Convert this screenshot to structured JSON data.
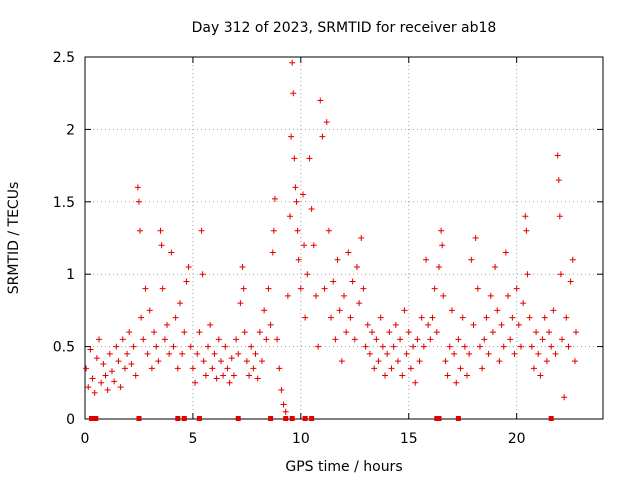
{
  "chart_data": {
    "type": "scatter",
    "title": "Day 312 of 2023, SRMTID for receiver ab18",
    "xlabel": "GPS time / hours",
    "ylabel": "SRMTID / TECUs",
    "xlim": [
      0,
      24
    ],
    "ylim": [
      0,
      2.5
    ],
    "xticks": [
      0,
      5,
      10,
      15,
      20
    ],
    "xtick_labels": [
      "0",
      "5",
      "10",
      "15",
      "20"
    ],
    "yticks": [
      0,
      0.5,
      1,
      1.5,
      2,
      2.5
    ],
    "ytick_labels": [
      "0",
      "0.5",
      "1",
      "1.5",
      "2",
      "2.5"
    ],
    "grid": true,
    "marker": "+",
    "color": "#e00000",
    "series": [
      {
        "name": "SRMTID",
        "points": [
          [
            0.05,
            0.35
          ],
          [
            0.15,
            0.22
          ],
          [
            0.25,
            0.48
          ],
          [
            0.35,
            0.28
          ],
          [
            0.45,
            0.18
          ],
          [
            0.55,
            0.42
          ],
          [
            0.65,
            0.55
          ],
          [
            0.75,
            0.25
          ],
          [
            0.85,
            0.38
          ],
          [
            0.95,
            0.3
          ],
          [
            1.05,
            0.2
          ],
          [
            1.15,
            0.45
          ],
          [
            1.25,
            0.33
          ],
          [
            1.35,
            0.26
          ],
          [
            1.45,
            0.5
          ],
          [
            1.55,
            0.4
          ],
          [
            1.65,
            0.22
          ],
          [
            1.75,
            0.55
          ],
          [
            1.85,
            0.35
          ],
          [
            1.95,
            0.45
          ],
          [
            2.05,
            0.6
          ],
          [
            2.15,
            0.38
          ],
          [
            2.25,
            0.5
          ],
          [
            2.35,
            0.3
          ],
          [
            2.45,
            1.6
          ],
          [
            2.5,
            1.5
          ],
          [
            2.55,
            1.3
          ],
          [
            2.6,
            0.7
          ],
          [
            2.7,
            0.55
          ],
          [
            2.8,
            0.9
          ],
          [
            2.9,
            0.45
          ],
          [
            3.0,
            0.75
          ],
          [
            3.1,
            0.35
          ],
          [
            3.2,
            0.6
          ],
          [
            3.3,
            0.5
          ],
          [
            3.4,
            0.4
          ],
          [
            3.5,
            1.3
          ],
          [
            3.55,
            1.2
          ],
          [
            3.6,
            0.9
          ],
          [
            3.7,
            0.55
          ],
          [
            3.8,
            0.65
          ],
          [
            3.9,
            0.45
          ],
          [
            4.0,
            1.15
          ],
          [
            4.1,
            0.5
          ],
          [
            4.2,
            0.7
          ],
          [
            4.3,
            0.35
          ],
          [
            4.4,
            0.8
          ],
          [
            4.5,
            0.45
          ],
          [
            4.6,
            0.6
          ],
          [
            4.7,
            0.95
          ],
          [
            4.8,
            1.05
          ],
          [
            4.9,
            0.5
          ],
          [
            5.0,
            0.35
          ],
          [
            5.1,
            0.25
          ],
          [
            5.2,
            0.45
          ],
          [
            5.3,
            0.6
          ],
          [
            5.4,
            1.3
          ],
          [
            5.45,
            1.0
          ],
          [
            5.5,
            0.4
          ],
          [
            5.6,
            0.3
          ],
          [
            5.7,
            0.5
          ],
          [
            5.8,
            0.65
          ],
          [
            5.9,
            0.35
          ],
          [
            6.0,
            0.45
          ],
          [
            6.1,
            0.28
          ],
          [
            6.2,
            0.55
          ],
          [
            6.3,
            0.4
          ],
          [
            6.4,
            0.3
          ],
          [
            6.5,
            0.5
          ],
          [
            6.6,
            0.35
          ],
          [
            6.7,
            0.25
          ],
          [
            6.8,
            0.42
          ],
          [
            6.9,
            0.3
          ],
          [
            7.0,
            0.55
          ],
          [
            7.1,
            0.45
          ],
          [
            7.2,
            0.8
          ],
          [
            7.3,
            1.05
          ],
          [
            7.35,
            0.9
          ],
          [
            7.4,
            0.6
          ],
          [
            7.5,
            0.4
          ],
          [
            7.6,
            0.3
          ],
          [
            7.7,
            0.5
          ],
          [
            7.8,
            0.35
          ],
          [
            7.9,
            0.45
          ],
          [
            8.0,
            0.28
          ],
          [
            8.1,
            0.6
          ],
          [
            8.2,
            0.4
          ],
          [
            8.3,
            0.75
          ],
          [
            8.4,
            0.55
          ],
          [
            8.5,
            0.9
          ],
          [
            8.6,
            0.65
          ],
          [
            8.7,
            1.15
          ],
          [
            8.75,
            1.3
          ],
          [
            8.8,
            1.52
          ],
          [
            8.9,
            0.55
          ],
          [
            9.0,
            0.35
          ],
          [
            9.1,
            0.2
          ],
          [
            9.2,
            0.1
          ],
          [
            9.3,
            0.05
          ],
          [
            9.4,
            0.85
          ],
          [
            9.5,
            1.4
          ],
          [
            9.55,
            1.95
          ],
          [
            9.6,
            2.46
          ],
          [
            9.65,
            2.25
          ],
          [
            9.7,
            1.8
          ],
          [
            9.75,
            1.6
          ],
          [
            9.8,
            1.5
          ],
          [
            9.85,
            1.3
          ],
          [
            9.9,
            1.1
          ],
          [
            10.0,
            0.9
          ],
          [
            10.1,
            1.55
          ],
          [
            10.15,
            1.2
          ],
          [
            10.2,
            0.7
          ],
          [
            10.3,
            1.0
          ],
          [
            10.4,
            1.8
          ],
          [
            10.5,
            1.45
          ],
          [
            10.6,
            1.2
          ],
          [
            10.7,
            0.85
          ],
          [
            10.8,
            0.5
          ],
          [
            10.9,
            2.2
          ],
          [
            11.0,
            1.95
          ],
          [
            11.1,
            0.9
          ],
          [
            11.2,
            2.05
          ],
          [
            11.3,
            1.3
          ],
          [
            11.4,
            0.7
          ],
          [
            11.5,
            0.95
          ],
          [
            11.6,
            0.55
          ],
          [
            11.7,
            1.1
          ],
          [
            11.8,
            0.75
          ],
          [
            11.9,
            0.4
          ],
          [
            12.0,
            0.85
          ],
          [
            12.1,
            0.6
          ],
          [
            12.2,
            1.15
          ],
          [
            12.3,
            0.7
          ],
          [
            12.4,
            0.95
          ],
          [
            12.5,
            0.55
          ],
          [
            12.6,
            1.05
          ],
          [
            12.7,
            0.8
          ],
          [
            12.8,
            1.25
          ],
          [
            12.9,
            0.9
          ],
          [
            13.0,
            0.5
          ],
          [
            13.1,
            0.65
          ],
          [
            13.2,
            0.45
          ],
          [
            13.3,
            0.6
          ],
          [
            13.4,
            0.35
          ],
          [
            13.5,
            0.55
          ],
          [
            13.6,
            0.4
          ],
          [
            13.7,
            0.7
          ],
          [
            13.8,
            0.5
          ],
          [
            13.9,
            0.3
          ],
          [
            14.0,
            0.45
          ],
          [
            14.1,
            0.6
          ],
          [
            14.2,
            0.35
          ],
          [
            14.3,
            0.5
          ],
          [
            14.4,
            0.65
          ],
          [
            14.5,
            0.4
          ],
          [
            14.6,
            0.55
          ],
          [
            14.7,
            0.3
          ],
          [
            14.8,
            0.75
          ],
          [
            14.9,
            0.45
          ],
          [
            15.0,
            0.6
          ],
          [
            15.1,
            0.35
          ],
          [
            15.2,
            0.5
          ],
          [
            15.3,
            0.25
          ],
          [
            15.4,
            0.55
          ],
          [
            15.5,
            0.4
          ],
          [
            15.6,
            0.7
          ],
          [
            15.7,
            0.5
          ],
          [
            15.8,
            1.1
          ],
          [
            15.9,
            0.65
          ],
          [
            16.0,
            0.55
          ],
          [
            16.1,
            0.7
          ],
          [
            16.2,
            0.9
          ],
          [
            16.3,
            0.6
          ],
          [
            16.4,
            1.05
          ],
          [
            16.5,
            1.3
          ],
          [
            16.55,
            1.2
          ],
          [
            16.6,
            0.85
          ],
          [
            16.7,
            0.4
          ],
          [
            16.8,
            0.3
          ],
          [
            16.9,
            0.5
          ],
          [
            17.0,
            0.75
          ],
          [
            17.1,
            0.45
          ],
          [
            17.2,
            0.25
          ],
          [
            17.3,
            0.55
          ],
          [
            17.4,
            0.35
          ],
          [
            17.5,
            0.7
          ],
          [
            17.6,
            0.5
          ],
          [
            17.7,
            0.3
          ],
          [
            17.8,
            0.45
          ],
          [
            17.9,
            1.1
          ],
          [
            18.0,
            0.65
          ],
          [
            18.1,
            1.25
          ],
          [
            18.2,
            0.9
          ],
          [
            18.3,
            0.5
          ],
          [
            18.4,
            0.35
          ],
          [
            18.5,
            0.55
          ],
          [
            18.6,
            0.7
          ],
          [
            18.7,
            0.45
          ],
          [
            18.8,
            0.85
          ],
          [
            18.9,
            0.6
          ],
          [
            19.0,
            1.05
          ],
          [
            19.1,
            0.75
          ],
          [
            19.2,
            0.4
          ],
          [
            19.3,
            0.65
          ],
          [
            19.4,
            0.5
          ],
          [
            19.5,
            1.15
          ],
          [
            19.6,
            0.85
          ],
          [
            19.7,
            0.55
          ],
          [
            19.8,
            0.7
          ],
          [
            19.9,
            0.45
          ],
          [
            20.0,
            0.9
          ],
          [
            20.1,
            0.65
          ],
          [
            20.2,
            0.5
          ],
          [
            20.3,
            0.8
          ],
          [
            20.4,
            1.4
          ],
          [
            20.45,
            1.3
          ],
          [
            20.5,
            1.0
          ],
          [
            20.6,
            0.7
          ],
          [
            20.7,
            0.5
          ],
          [
            20.8,
            0.35
          ],
          [
            20.9,
            0.6
          ],
          [
            21.0,
            0.45
          ],
          [
            21.1,
            0.3
          ],
          [
            21.2,
            0.55
          ],
          [
            21.3,
            0.7
          ],
          [
            21.4,
            0.4
          ],
          [
            21.5,
            0.6
          ],
          [
            21.6,
            0.5
          ],
          [
            21.7,
            0.75
          ],
          [
            21.8,
            0.45
          ],
          [
            21.9,
            1.82
          ],
          [
            21.95,
            1.65
          ],
          [
            22.0,
            1.4
          ],
          [
            22.05,
            1.0
          ],
          [
            22.1,
            0.55
          ],
          [
            22.2,
            0.15
          ],
          [
            22.3,
            0.7
          ],
          [
            22.4,
            0.5
          ],
          [
            22.5,
            0.95
          ],
          [
            22.6,
            1.1
          ],
          [
            22.7,
            0.4
          ],
          [
            22.75,
            0.6
          ]
        ]
      }
    ],
    "bottom_markers": [
      0.3,
      0.5,
      2.5,
      4.3,
      4.6,
      5.3,
      7.1,
      8.6,
      9.3,
      9.6,
      10.2,
      10.5,
      16.3,
      16.4,
      17.3,
      21.6
    ]
  }
}
